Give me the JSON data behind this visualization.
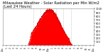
{
  "title": "Milwaukee Weather - Solar Radiation per Min W/m2\n(Last 24 Hours)",
  "title_fontsize": 3.8,
  "bg_color": "#ffffff",
  "fill_color": "#ff0000",
  "line_color": "#dd0000",
  "grid_color": "#aaaaaa",
  "num_points": 1440,
  "peak_minute": 750,
  "peak_value": 950,
  "ylim": [
    0,
    1000
  ],
  "xlim": [
    0,
    1440
  ],
  "ytick_values": [
    100,
    200,
    300,
    400,
    500,
    600,
    700,
    800,
    900,
    1000
  ],
  "ytick_fontsize": 2.5,
  "xtick_fontsize": 2.2,
  "vgrid_positions": [
    480,
    600,
    720,
    840,
    960,
    1080
  ],
  "xtick_positions": [
    0,
    60,
    120,
    180,
    240,
    300,
    360,
    420,
    480,
    540,
    600,
    660,
    720,
    780,
    840,
    900,
    960,
    1020,
    1080,
    1140,
    1200,
    1260,
    1320,
    1380,
    1440
  ],
  "xtick_labels": [
    "12a",
    "1",
    "2",
    "3",
    "4",
    "5",
    "6",
    "7",
    "8",
    "9",
    "10",
    "11",
    "12p",
    "1",
    "2",
    "3",
    "4",
    "5",
    "6",
    "7",
    "8",
    "9",
    "10",
    "11",
    "12a"
  ]
}
